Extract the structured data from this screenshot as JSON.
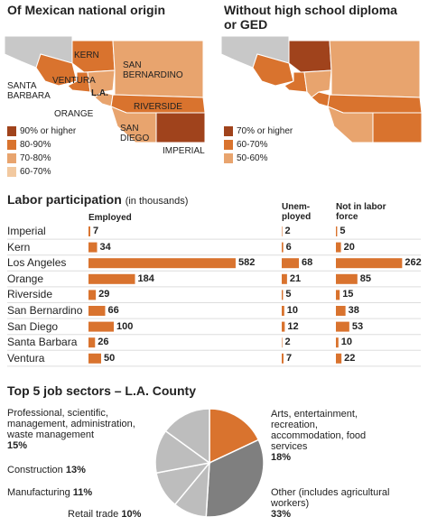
{
  "maps": [
    {
      "title": "Of Mexican national origin",
      "labels": [
        "KERN",
        "SAN BERNARDINO",
        "SANTA BARBARA",
        "VENTURA",
        "L.A.",
        "ORANGE",
        "RIVERSIDE",
        "SAN DIEGO",
        "IMPERIAL"
      ],
      "legend": [
        {
          "label": "90% or higher",
          "color": "#a0431c"
        },
        {
          "label": "80-90%",
          "color": "#d9732e"
        },
        {
          "label": "70-80%",
          "color": "#e8a46e"
        },
        {
          "label": "60-70%",
          "color": "#f2c9a0"
        }
      ]
    },
    {
      "title": "Without high school diploma or GED",
      "legend": [
        {
          "label": "70% or higher",
          "color": "#a0431c"
        },
        {
          "label": "60-70%",
          "color": "#d9732e"
        },
        {
          "label": "50-60%",
          "color": "#e8a46e"
        }
      ]
    }
  ],
  "chart_data": [
    {
      "type": "bar",
      "orientation": "horizontal",
      "title": "Labor participation",
      "subtitle": "(in thousands)",
      "categories": [
        "Imperial",
        "Kern",
        "Los Angeles",
        "Orange",
        "Riverside",
        "San Bernardino",
        "San Diego",
        "Santa Barbara",
        "Ventura"
      ],
      "series": [
        {
          "name": "Employed",
          "color": "#d9732e",
          "values": [
            7,
            34,
            582,
            184,
            29,
            66,
            100,
            26,
            50
          ]
        },
        {
          "name": "Unem-ployed",
          "color": "#d9732e",
          "values": [
            2,
            6,
            68,
            21,
            5,
            10,
            12,
            2,
            7
          ]
        },
        {
          "name": "Not in labor force",
          "color": "#d9732e",
          "values": [
            5,
            20,
            262,
            85,
            15,
            38,
            53,
            10,
            22
          ]
        }
      ]
    },
    {
      "type": "pie",
      "title": "Top 5 job sectors – L.A. County",
      "categories": [
        "Arts, entertainment, recreation, accommodation, food services",
        "Other (includes agricultural workers)",
        "Retail trade",
        "Manufacturing",
        "Construction",
        "Professional, scientific, management, administration, waste management"
      ],
      "values": [
        18,
        33,
        10,
        11,
        13,
        15
      ],
      "value_labels": [
        "18%",
        "33%",
        "10%",
        "11%",
        "13%",
        "15%"
      ],
      "colors": [
        "#d9732e",
        "#7f7f7f",
        "#bdbdbd",
        "#bdbdbd",
        "#bdbdbd",
        "#bdbdbd"
      ]
    }
  ]
}
